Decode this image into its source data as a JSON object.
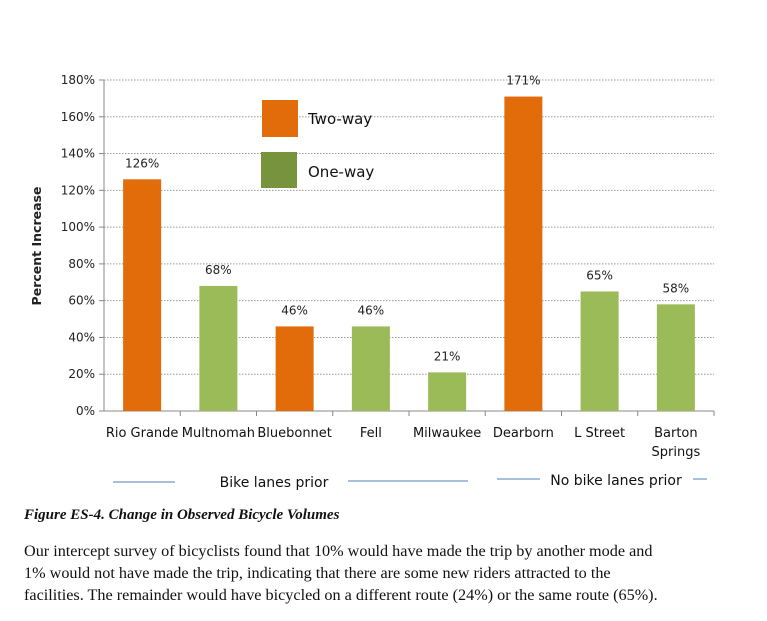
{
  "chart_data": {
    "type": "bar",
    "ylabel": "Percent Increase",
    "ylim": [
      0,
      180
    ],
    "yticks": [
      "0%",
      "20%",
      "40%",
      "60%",
      "80%",
      "100%",
      "120%",
      "140%",
      "160%",
      "180%"
    ],
    "grid": true,
    "categories": [
      "Rio Grande",
      "Multnomah",
      "Bluebonnet",
      "Fell",
      "Milwaukee",
      "Dearborn",
      "L Street",
      "Barton Springs"
    ],
    "values": [
      126,
      68,
      46,
      46,
      21,
      171,
      65,
      58
    ],
    "data_labels": [
      "126%",
      "68%",
      "46%",
      "46%",
      "21%",
      "171%",
      "65%",
      "58%"
    ],
    "types": [
      "Two-way",
      "One-way",
      "Two-way",
      "One-way",
      "One-way",
      "Two-way",
      "One-way",
      "One-way"
    ],
    "legend": [
      {
        "name": "Two-way",
        "color": "#e36c0a"
      },
      {
        "name": "One-way",
        "color": "#77933c"
      }
    ],
    "bar_colors": {
      "Two-way": "#e36c0a",
      "One-way": "#9bbb59"
    },
    "legend_placement": "top-center",
    "groups": [
      {
        "label": "Bike lanes prior",
        "categories": [
          "Rio Grande",
          "Multnomah",
          "Bluebonnet",
          "Fell",
          "Milwaukee"
        ]
      },
      {
        "label": "No bike lanes prior",
        "categories": [
          "Dearborn",
          "L Street",
          "Barton Springs"
        ]
      }
    ]
  },
  "caption": "Figure ES-4. Change in Observed Bicycle Volumes",
  "paragraph": [
    "Our intercept survey of bicyclists found that 10% would have made the trip by another mode and",
    "1% would not have made the trip, indicating that there are some new riders attracted to the",
    "facilities. The remainder would have bicycled on a different route (24%) or the same route (65%)."
  ]
}
